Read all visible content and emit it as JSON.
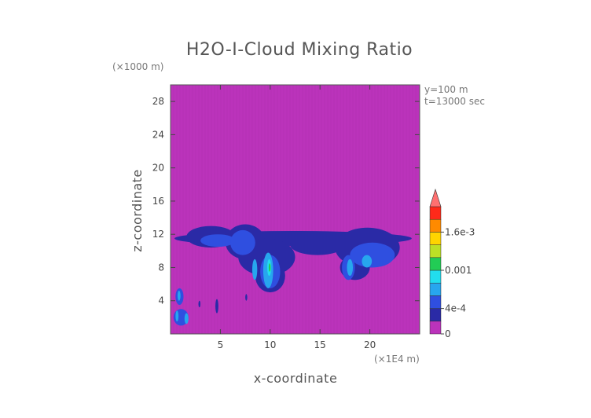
{
  "chart_data": {
    "type": "heatmap",
    "title": "H2O-I-Cloud Mixing Ratio",
    "xlabel": "x-coordinate",
    "ylabel": "z-coordinate",
    "x_unit": "(×1E4 m)",
    "y_unit": "(×1000 m)",
    "info_lines": [
      "y=100  m",
      "t=13000 sec"
    ],
    "xlim": [
      0,
      25
    ],
    "ylim": [
      0,
      30
    ],
    "x_ticks": [
      5,
      10,
      15,
      20
    ],
    "y_ticks": [
      4,
      8,
      12,
      16,
      20,
      24,
      28
    ],
    "colorbar": {
      "levels": [
        0,
        0.0002,
        0.0004,
        0.0006,
        0.0008,
        0.001,
        0.0012,
        0.0014,
        0.0016,
        0.0018,
        0.002
      ],
      "colors": [
        "#bb33bb",
        "#2a2aa6",
        "#2f4fe0",
        "#27a6ee",
        "#22ddee",
        "#22cc55",
        "#bde026",
        "#ffd400",
        "#ff8a00",
        "#ff2a1a",
        "#dd1133"
      ],
      "extend_color": "#ff7070",
      "tick_labels": [
        "0",
        "4e-4",
        "0.001",
        "1.6e-3"
      ],
      "tick_values": [
        0,
        0.0004,
        0.001,
        0.0016
      ]
    },
    "background_value": 0,
    "regions": [
      {
        "x": [
          0.4,
          24.2
        ],
        "z": [
          10.6,
          12.4
        ],
        "value": 0.0002
      },
      {
        "x": [
          1.6,
          6.5
        ],
        "z": [
          10.4,
          13
        ],
        "value": 0.0002
      },
      {
        "x": [
          5.5,
          9.5
        ],
        "z": [
          9,
          13.2
        ],
        "value": 0.0002
      },
      {
        "x": [
          6.8,
          12.5
        ],
        "z": [
          7,
          11.5
        ],
        "value": 0.0002
      },
      {
        "x": [
          8.5,
          11.5
        ],
        "z": [
          5,
          9
        ],
        "value": 0.0002
      },
      {
        "x": [
          12,
          17.5
        ],
        "z": [
          9.5,
          12
        ],
        "value": 0.0002
      },
      {
        "x": [
          16.5,
          23
        ],
        "z": [
          8,
          12.8
        ],
        "value": 0.0002
      },
      {
        "x": [
          17,
          20
        ],
        "z": [
          6.5,
          9.5
        ],
        "value": 0.0002
      },
      {
        "x": [
          3,
          6.5
        ],
        "z": [
          10.5,
          12
        ],
        "value": 0.0004
      },
      {
        "x": [
          6,
          8.5
        ],
        "z": [
          9.5,
          12.5
        ],
        "value": 0.0004
      },
      {
        "x": [
          9,
          11
        ],
        "z": [
          5.5,
          9.5
        ],
        "value": 0.0004
      },
      {
        "x": [
          18,
          22.5
        ],
        "z": [
          8,
          11
        ],
        "value": 0.0004
      },
      {
        "x": [
          17.2,
          18.5
        ],
        "z": [
          6.5,
          9.5
        ],
        "value": 0.0004
      },
      {
        "x": [
          8.2,
          8.7
        ],
        "z": [
          6.5,
          9
        ],
        "value": 0.0006
      },
      {
        "x": [
          9.3,
          10.3
        ],
        "z": [
          5.5,
          9.8
        ],
        "value": 0.0006
      },
      {
        "x": [
          17.7,
          18.3
        ],
        "z": [
          7,
          9
        ],
        "value": 0.0006
      },
      {
        "x": [
          19.2,
          20.2
        ],
        "z": [
          8,
          9.5
        ],
        "value": 0.0006
      },
      {
        "x": [
          9.7,
          10.1
        ],
        "z": [
          7,
          9
        ],
        "value": 0.0008
      },
      {
        "x": [
          9.85,
          10.05
        ],
        "z": [
          7.5,
          8.5
        ],
        "value": 0.001
      },
      {
        "x": [
          0.5,
          1.3
        ],
        "z": [
          3.5,
          5.5
        ],
        "value": 0.0004
      },
      {
        "x": [
          0.7,
          1
        ],
        "z": [
          4,
          5.2
        ],
        "value": 0.0006
      },
      {
        "x": [
          0.3,
          1.8
        ],
        "z": [
          1,
          3
        ],
        "value": 0.0004
      },
      {
        "x": [
          0.5,
          0.8
        ],
        "z": [
          1.5,
          2.8
        ],
        "value": 0.0006
      },
      {
        "x": [
          1.4,
          1.8
        ],
        "z": [
          1.2,
          2.5
        ],
        "value": 0.0006
      },
      {
        "x": [
          2.8,
          3
        ],
        "z": [
          3.2,
          4
        ],
        "value": 0.0002
      },
      {
        "x": [
          4.5,
          4.8
        ],
        "z": [
          2.5,
          4.2
        ],
        "value": 0.0002
      },
      {
        "x": [
          7.5,
          7.7
        ],
        "z": [
          4,
          4.8
        ],
        "value": 0.0002
      }
    ]
  }
}
